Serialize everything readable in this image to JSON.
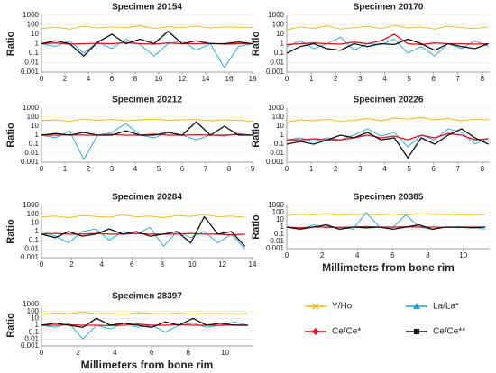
{
  "legend": [
    {
      "name": "Y/Ho",
      "color": "#f2b705"
    },
    {
      "name": "La/La*",
      "color": "#1ba3dd"
    },
    {
      "name": "Ce/Ce*",
      "color": "#e3121b"
    },
    {
      "name": "Ce/Ce**",
      "color": "#111111"
    }
  ],
  "chart_data": [
    {
      "type": "line",
      "title": "Specimen 20154",
      "ylabel": "Ratio",
      "log_scale": true,
      "grid": true,
      "x": [
        0,
        1.2,
        2.4,
        3.6,
        4.8,
        6,
        7.2,
        8.4,
        9.6,
        10.8,
        12,
        13.2,
        14.4,
        15.6,
        16.8,
        18
      ],
      "series": [
        {
          "values": [
            40,
            55,
            35,
            70,
            45,
            60,
            50,
            80,
            40,
            65,
            50,
            75,
            45,
            60,
            55,
            50
          ]
        },
        {
          "values": [
            1,
            0.5,
            2,
            0.1,
            1.5,
            0.3,
            3,
            0.8,
            0.05,
            1,
            2,
            0.2,
            1,
            0.003,
            0.5,
            1
          ]
        },
        {
          "values": [
            1,
            1.2,
            0.9,
            1,
            1.1,
            1,
            1.3,
            1,
            0.9,
            1.2,
            1,
            1,
            1.1,
            0.9,
            1,
            1
          ]
        },
        {
          "values": [
            1,
            2,
            1,
            0.05,
            1.5,
            10,
            1,
            3,
            1,
            20,
            1,
            2,
            1,
            1,
            1.5,
            1
          ]
        }
      ],
      "xlim": [
        0,
        18
      ],
      "xticks": [
        0,
        2,
        4,
        6,
        8,
        10,
        12,
        14,
        16,
        18
      ],
      "ylim": [
        0.001,
        1000
      ],
      "yticks": [
        0.001,
        0.01,
        0.1,
        1,
        10,
        100,
        1000
      ]
    },
    {
      "type": "line",
      "title": "Specimen 20170",
      "ylabel": "Ratio",
      "log_scale": true,
      "grid": true,
      "x": [
        0,
        0.55,
        1.1,
        1.65,
        2.2,
        2.75,
        3.3,
        3.85,
        4.4,
        4.95,
        5.5,
        6.05,
        6.6,
        7.15,
        7.7,
        8.25
      ],
      "series": [
        {
          "values": [
            30,
            60,
            40,
            80,
            35,
            50,
            70,
            40,
            90,
            45,
            60,
            35,
            70,
            50,
            40,
            60
          ]
        },
        {
          "values": [
            0.5,
            2,
            0.3,
            1,
            5,
            0.2,
            1,
            0.8,
            3,
            0.1,
            0.5,
            0.05,
            1,
            0.3,
            2,
            0.5
          ]
        },
        {
          "values": [
            0.8,
            1,
            1.2,
            1,
            0.9,
            1.5,
            1,
            2,
            10,
            1,
            0.8,
            1.2,
            1,
            1,
            0.9,
            1
          ]
        },
        {
          "values": [
            0.1,
            0.5,
            1,
            0.3,
            0.2,
            1,
            0.5,
            1,
            0.8,
            3,
            1,
            0.2,
            1,
            0.5,
            0.3,
            1
          ]
        }
      ],
      "xlim": [
        0,
        8.3
      ],
      "xticks": [
        0,
        1,
        2,
        3,
        4,
        5,
        6,
        7,
        8
      ],
      "ylim": [
        0.001,
        1000
      ],
      "yticks": [
        0.001,
        0.01,
        0.1,
        1,
        10,
        100,
        1000
      ]
    },
    {
      "type": "line",
      "title": "Specimen 20212",
      "ylabel": "Ratio",
      "log_scale": true,
      "grid": true,
      "x": [
        0,
        0.6,
        1.2,
        1.8,
        2.4,
        3,
        3.6,
        4.2,
        4.8,
        5.4,
        6,
        6.6,
        7.2,
        7.8,
        8.4,
        9
      ],
      "series": [
        {
          "values": [
            40,
            50,
            35,
            60,
            45,
            55,
            40,
            50,
            60,
            45,
            50,
            55,
            40,
            50,
            45,
            35
          ]
        },
        {
          "values": [
            1,
            0.5,
            3,
            0.002,
            1,
            2,
            20,
            1,
            0.5,
            2,
            1,
            0.3,
            1,
            0.8,
            1.5,
            1
          ]
        },
        {
          "values": [
            1,
            1,
            1.1,
            1,
            1,
            1.2,
            1,
            1,
            1.3,
            1,
            1,
            1.1,
            1,
            1,
            1.2,
            1
          ]
        },
        {
          "values": [
            1,
            1.5,
            1,
            2,
            1,
            1,
            3,
            1,
            1,
            2,
            1,
            30,
            1,
            10,
            1,
            1
          ]
        }
      ],
      "xlim": [
        0,
        9
      ],
      "xticks": [
        0,
        1,
        2,
        3,
        4,
        5,
        6,
        7,
        8,
        9
      ],
      "ylim": [
        0.001,
        1000
      ],
      "yticks": [
        0.001,
        0.01,
        0.1,
        1,
        10,
        100,
        1000
      ]
    },
    {
      "type": "line",
      "title": "Specimen 20226",
      "ylabel": "Ratio",
      "log_scale": true,
      "grid": true,
      "x": [
        0,
        0.55,
        1.1,
        1.65,
        2.2,
        2.75,
        3.3,
        3.85,
        4.4,
        4.95,
        5.5,
        6.05,
        6.6,
        7.15,
        7.7,
        8.25
      ],
      "series": [
        {
          "values": [
            30,
            50,
            40,
            60,
            35,
            45,
            70,
            40,
            80,
            60,
            90,
            50,
            70,
            40,
            60,
            50
          ]
        },
        {
          "values": [
            0.3,
            0.5,
            0.2,
            0.5,
            0.3,
            1,
            5,
            0.8,
            2,
            0.05,
            1,
            0.3,
            5,
            2,
            0.1,
            0.5
          ]
        },
        {
          "values": [
            0.3,
            0.3,
            0.4,
            0.3,
            0.3,
            0.5,
            1,
            0.5,
            0.8,
            0.3,
            1,
            0.5,
            1.5,
            1,
            0.3,
            0.4
          ]
        },
        {
          "values": [
            0.1,
            0.2,
            0.1,
            0.3,
            1,
            0.5,
            2,
            0.3,
            0.5,
            0.003,
            0.5,
            0.1,
            1,
            5,
            0.5,
            0.1
          ]
        }
      ],
      "xlim": [
        0,
        8.3
      ],
      "xticks": [
        0,
        1,
        2,
        3,
        4,
        5,
        6,
        7,
        8
      ],
      "ylim": [
        0.001,
        1000
      ],
      "yticks": [
        0.001,
        0.01,
        0.1,
        1,
        10,
        100,
        1000
      ]
    },
    {
      "type": "line",
      "title": "Specimen 20284",
      "ylabel": "Ratio",
      "log_scale": true,
      "grid": true,
      "x": [
        0,
        0.9,
        1.8,
        2.7,
        3.6,
        4.5,
        5.4,
        6.3,
        7.2,
        8.1,
        9,
        9.9,
        10.8,
        11.7,
        12.6,
        13.5
      ],
      "series": [
        {
          "values": [
            50,
            60,
            40,
            70,
            55,
            45,
            80,
            50,
            60,
            40,
            70,
            55,
            90,
            50,
            60,
            45
          ]
        },
        {
          "values": [
            1,
            0.3,
            0.05,
            1,
            2,
            0.1,
            1,
            0.5,
            3,
            0.02,
            1,
            0.2,
            1,
            0.05,
            0.5,
            0.01
          ]
        },
        {
          "values": [
            0.5,
            0.6,
            0.5,
            0.5,
            0.6,
            0.5,
            0.5,
            0.6,
            0.5,
            0.5,
            0.5,
            0.6,
            0.5,
            0.5,
            0.4,
            0.5
          ]
        },
        {
          "values": [
            0.5,
            0.2,
            1,
            0.3,
            0.5,
            2,
            0.5,
            1,
            0.3,
            0.5,
            1,
            0.05,
            50,
            0.5,
            1,
            0.02
          ]
        }
      ],
      "xlim": [
        0,
        14
      ],
      "xticks": [
        0,
        2,
        4,
        6,
        8,
        10,
        12,
        14
      ],
      "ylim": [
        0.001,
        1000
      ],
      "yticks": [
        0.001,
        0.01,
        0.1,
        1,
        10,
        100,
        1000
      ]
    },
    {
      "type": "line",
      "title": "Specimen 20385",
      "ylabel": "Ratio",
      "xlabel": "Millimeters from bone rim",
      "log_scale": true,
      "grid": true,
      "x": [
        0,
        0.75,
        1.5,
        2.25,
        3,
        3.75,
        4.5,
        5.25,
        6,
        6.75,
        7.5,
        8.25,
        9,
        9.75,
        10.5,
        11.25
      ],
      "series": [
        {
          "values": [
            40,
            60,
            50,
            70,
            45,
            55,
            60,
            50,
            65,
            45,
            70,
            55,
            60,
            50,
            45,
            55
          ]
        },
        {
          "values": [
            1,
            0.5,
            2,
            0.8,
            1,
            0.5,
            100,
            1,
            0.8,
            50,
            1,
            0.5,
            1,
            0.8,
            1,
            0.5
          ]
        },
        {
          "values": [
            1,
            0.8,
            1,
            1,
            0.9,
            1,
            1.2,
            1,
            1,
            1.1,
            1,
            1,
            0.9,
            1,
            1,
            1
          ]
        },
        {
          "values": [
            1,
            0.5,
            1,
            2,
            0.5,
            1,
            0.8,
            1,
            0.5,
            1,
            2,
            0.5,
            1,
            1,
            0.8,
            1
          ]
        }
      ],
      "xlim": [
        0,
        11.5
      ],
      "xticks": [
        0,
        2,
        4,
        6,
        8,
        10
      ],
      "ylim": [
        0.001,
        1000
      ],
      "yticks": [
        0.001,
        0.01,
        0.1,
        1,
        10,
        100,
        1000
      ]
    },
    {
      "type": "line",
      "title": "Specimen 28397",
      "ylabel": "Ratio",
      "xlabel": "Millimeters from bone rim",
      "log_scale": true,
      "grid": true,
      "x": [
        0,
        0.75,
        1.5,
        2.25,
        3,
        3.75,
        4.5,
        5.25,
        6,
        6.75,
        7.5,
        8.25,
        9,
        9.75,
        10.5,
        11.25
      ],
      "series": [
        {
          "values": [
            40,
            60,
            50,
            80,
            45,
            55,
            40,
            70,
            50,
            45,
            60,
            40,
            55,
            50,
            45,
            50
          ]
        },
        {
          "values": [
            1,
            0.5,
            2,
            0.01,
            1,
            0.3,
            2,
            0.5,
            1,
            0.1,
            1,
            2,
            0.5,
            1,
            3,
            1
          ]
        },
        {
          "values": [
            1,
            1,
            1.2,
            1,
            1,
            0.9,
            1,
            1.5,
            1,
            1,
            1.2,
            1,
            1,
            1,
            1.1,
            1
          ]
        },
        {
          "values": [
            1,
            2,
            1,
            0.5,
            10,
            1,
            2,
            1,
            0.5,
            3,
            1,
            10,
            1,
            2,
            1,
            1
          ]
        }
      ],
      "xlim": [
        0,
        11.5
      ],
      "xticks": [
        0,
        2,
        4,
        6,
        8,
        10
      ],
      "ylim": [
        0.001,
        1000
      ],
      "yticks": [
        0.001,
        0.01,
        0.1,
        1,
        10,
        100,
        1000
      ]
    }
  ]
}
